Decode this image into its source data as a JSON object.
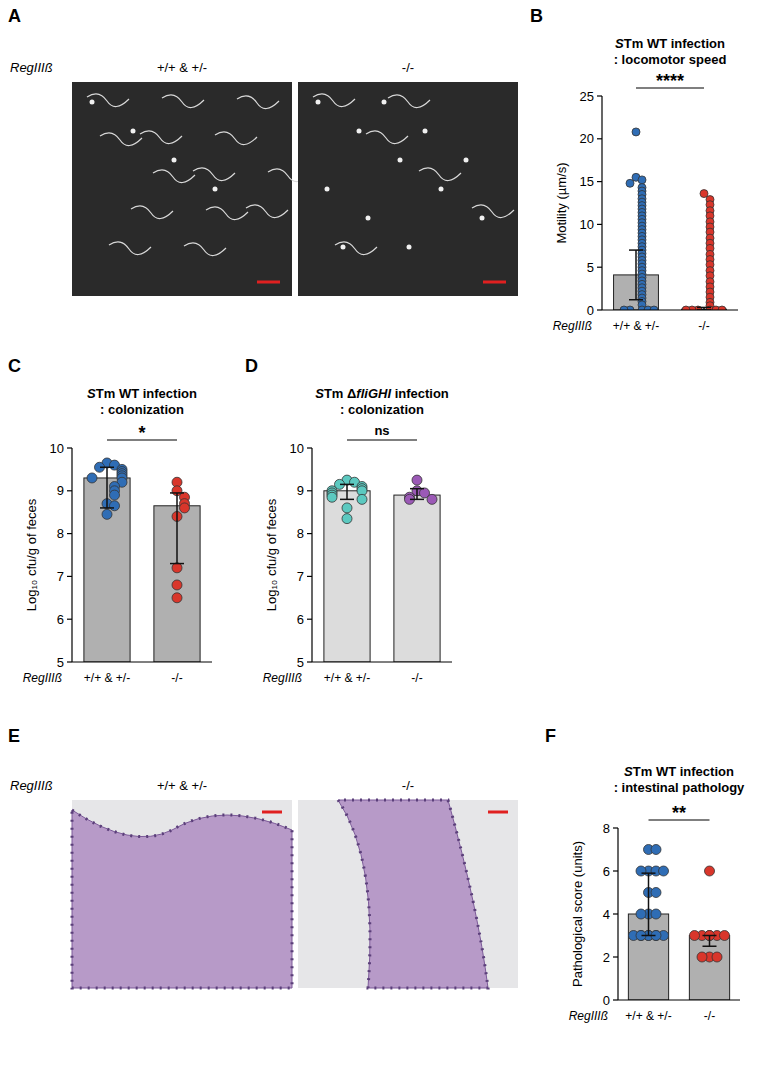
{
  "figure": {
    "images": [
      {
        "letter": "A",
        "gene_label": "RegIIIß",
        "genotypes": [
          "+/+ & +/-",
          "-/-"
        ]
      },
      {
        "letter": "E",
        "gene_label": "RegIIIß",
        "genotypes": [
          "+/+ & +/-",
          "-/-"
        ]
      }
    ]
  },
  "chart_data": [
    {
      "type": "bar",
      "panel": "B",
      "title": "STm WT infection",
      "subtitle": ": locomotor speed",
      "y_label": "Motility (µm/s)",
      "x_label": "RegIIIß",
      "categories": [
        "+/+ & +/-",
        "-/-"
      ],
      "values": [
        4.1,
        0.1
      ],
      "error_low": [
        1.2,
        0
      ],
      "error_high": [
        7.0,
        0.3
      ],
      "colors": [
        "#b0b0b0",
        "#b0b0b0"
      ],
      "point_colors": [
        "#2f6db5",
        "#d9362b"
      ],
      "points": [
        [
          20.8,
          15.5,
          15.2,
          14.8,
          14.3,
          13.9,
          13.5,
          13.0,
          12.6,
          12.2,
          11.8,
          11.4,
          11.0,
          10.6,
          10.2,
          9.8,
          9.4,
          9.0,
          8.6,
          8.2,
          7.8,
          7.4,
          7.0,
          6.6,
          6.2,
          5.8,
          5.4,
          5.0,
          4.6,
          4.2,
          3.8,
          3.4,
          3.0,
          2.6,
          2.2,
          1.8,
          1.4,
          1.0,
          0.6,
          0,
          0,
          0,
          0,
          0
        ],
        [
          13.6,
          12.9,
          12.3,
          11.6,
          11.0,
          10.3,
          9.7,
          9.1,
          8.4,
          7.8,
          7.2,
          6.5,
          5.9,
          5.3,
          4.6,
          4.0,
          3.3,
          2.7,
          2.1,
          1.5,
          0.9,
          0.5,
          0,
          0,
          0,
          0,
          0,
          0
        ]
      ],
      "ylim": [
        0,
        25
      ],
      "yticks": [
        0,
        5,
        10,
        15,
        20,
        25
      ],
      "significance": "****"
    },
    {
      "type": "bar",
      "panel": "C",
      "title": "STm WT infection",
      "subtitle": ": colonization",
      "y_label": "Log₁₀ cfu/g of feces",
      "x_label": "RegIIIß",
      "categories": [
        "+/+ & +/-",
        "-/-"
      ],
      "values": [
        9.3,
        8.65
      ],
      "error_low": [
        8.6,
        7.3
      ],
      "error_high": [
        9.55,
        8.95
      ],
      "colors": [
        "#b0b0b0",
        "#b0b0b0"
      ],
      "point_colors": [
        "#2f6db5",
        "#d9362b"
      ],
      "points": [
        [
          9.65,
          9.6,
          9.55,
          9.5,
          9.45,
          9.4,
          9.35,
          9.3,
          9.3,
          9.2,
          9.1,
          9.0,
          8.9,
          8.7,
          8.65,
          8.45
        ],
        [
          9.2,
          9.0,
          8.85,
          8.7,
          8.6,
          8.4,
          7.2,
          6.8,
          6.5
        ]
      ],
      "ylim": [
        5,
        10
      ],
      "yticks": [
        5,
        6,
        7,
        8,
        9,
        10
      ],
      "significance": "*"
    },
    {
      "type": "bar",
      "panel": "D",
      "title": "STm ΔfliGHI infection",
      "subtitle": ": colonization",
      "y_label": "Log₁₀ cfu/g of feces",
      "x_label": "RegIIIß",
      "categories": [
        "+/+ & +/-",
        "-/-"
      ],
      "values": [
        9.0,
        8.9
      ],
      "error_low": [
        8.8,
        8.8
      ],
      "error_high": [
        9.15,
        9.05
      ],
      "colors": [
        "#dcdcdc",
        "#dcdcdc"
      ],
      "point_colors": [
        "#5cc9c0",
        "#9b59b6"
      ],
      "points": [
        [
          9.25,
          9.2,
          9.15,
          9.1,
          9.05,
          9.0,
          9.0,
          8.95,
          8.9,
          8.85,
          8.8,
          8.6,
          8.35
        ],
        [
          9.25,
          9.0,
          8.95,
          8.85,
          8.8,
          8.8
        ]
      ],
      "ylim": [
        5,
        10
      ],
      "yticks": [
        5,
        6,
        7,
        8,
        9,
        10
      ],
      "significance": "ns"
    },
    {
      "type": "bar",
      "panel": "F",
      "title": "STm WT infection",
      "subtitle": ": intestinal pathology",
      "y_label": "Pathological score (units)",
      "x_label": "RegIIIß",
      "categories": [
        "+/+ & +/-",
        "-/-"
      ],
      "values": [
        4.0,
        3.0
      ],
      "error_low": [
        3.0,
        2.5
      ],
      "error_high": [
        5.9,
        3.0
      ],
      "colors": [
        "#b0b0b0",
        "#b0b0b0"
      ],
      "point_colors": [
        "#2f6db5",
        "#d9362b"
      ],
      "points": [
        [
          7,
          7,
          6,
          6,
          6,
          6,
          5,
          5,
          4,
          4,
          4,
          3,
          3,
          3,
          3,
          3,
          3,
          3,
          3
        ],
        [
          6,
          3,
          3,
          3,
          3,
          3,
          3,
          2,
          2,
          2
        ]
      ],
      "ylim": [
        0,
        8
      ],
      "yticks": [
        0,
        2,
        4,
        6,
        8
      ],
      "significance": "**"
    }
  ]
}
